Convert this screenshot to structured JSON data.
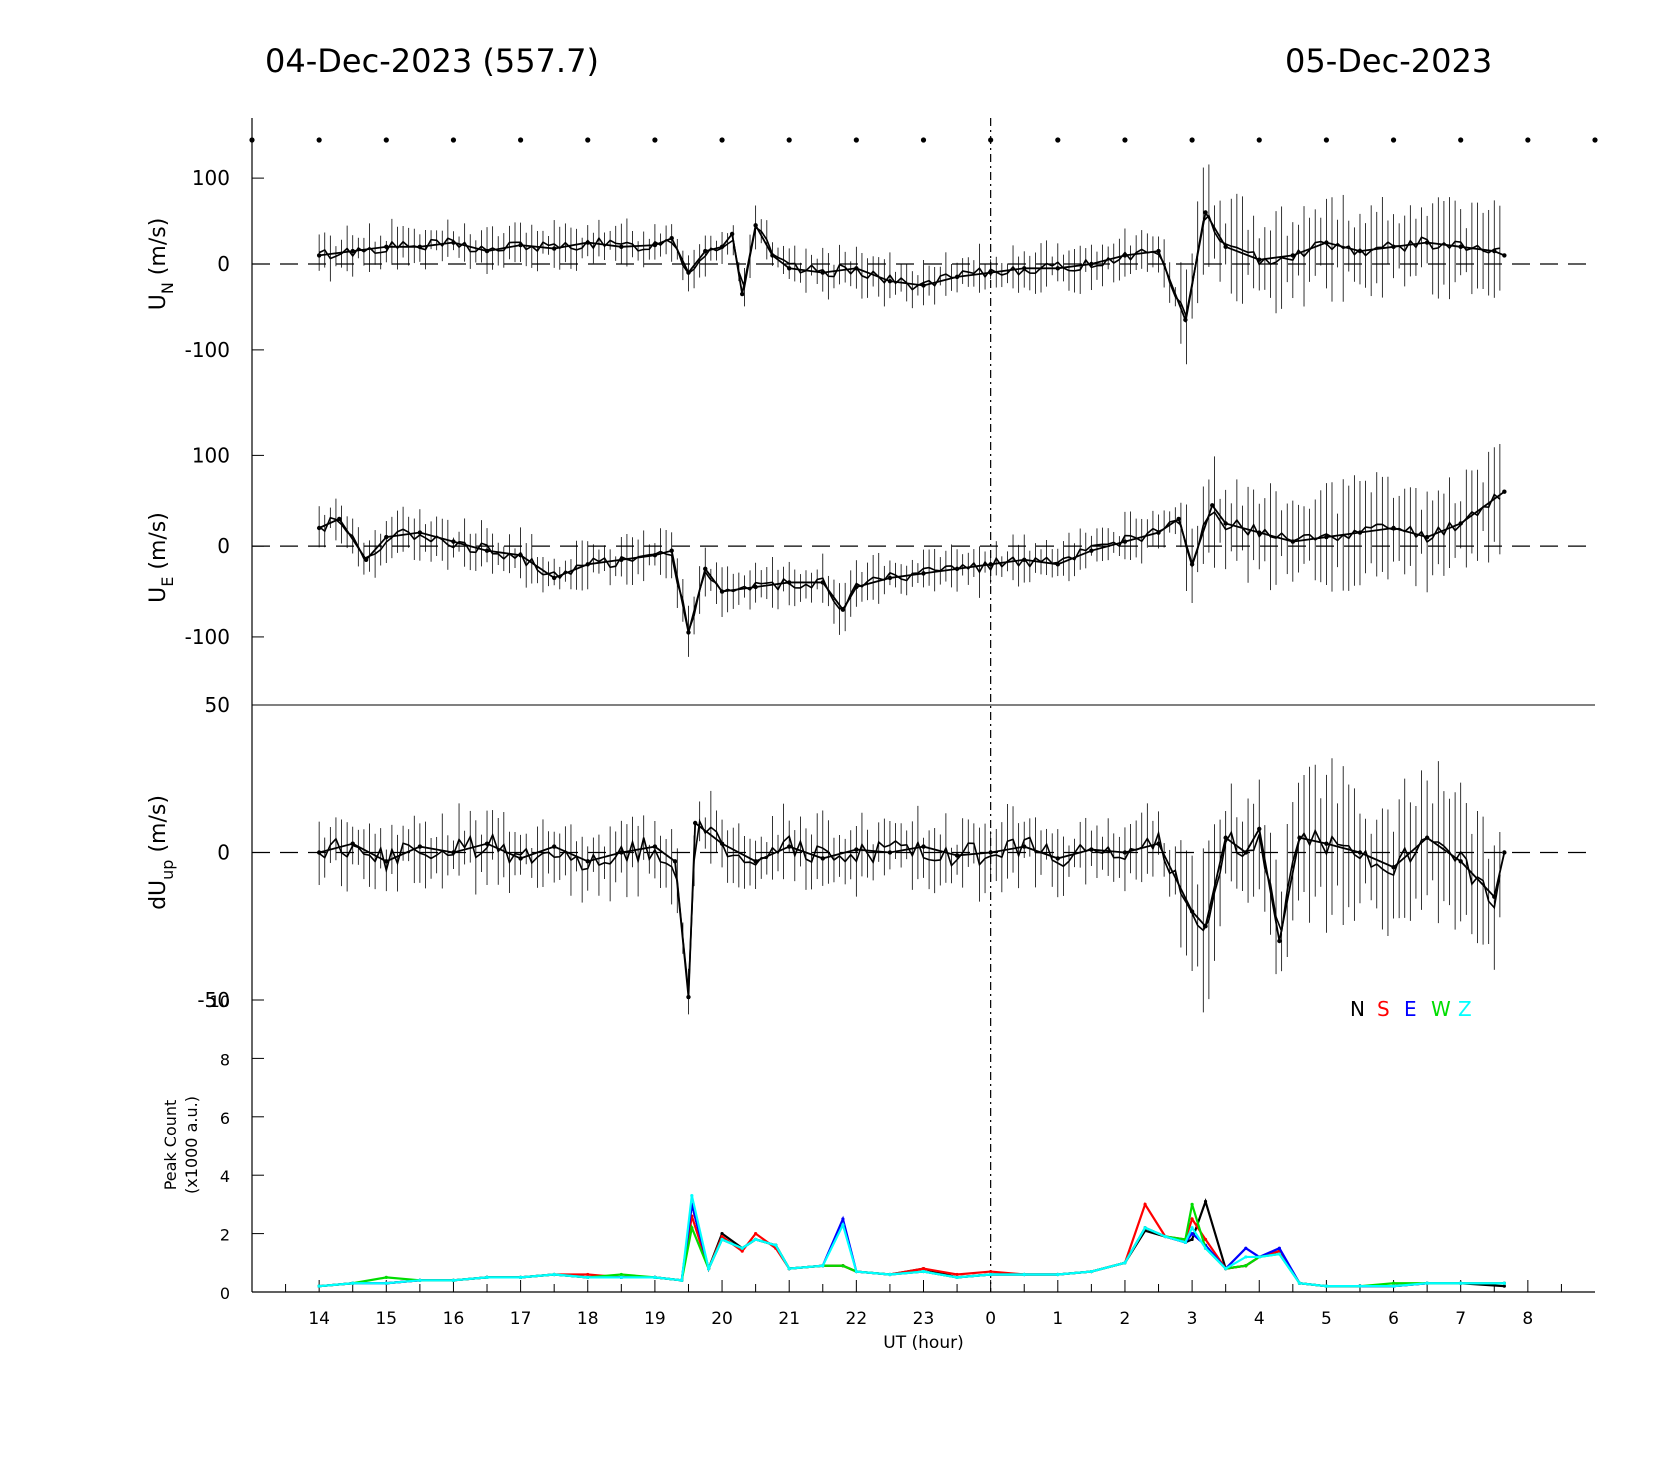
{
  "header": {
    "left_date": "04-Dec-2023 (557.7)",
    "right_date": "05-Dec-2023"
  },
  "chart_data": [
    {
      "type": "line",
      "ylabel_main": "U",
      "ylabel_sub": "N",
      "ylabel_unit": " (m/s)",
      "ylim": [
        -170,
        170
      ],
      "yticks": [
        100,
        0,
        -100
      ],
      "ytick_labels": [
        "100",
        "0",
        "-100"
      ],
      "series": [
        {
          "color": "#000000",
          "error_bars": true,
          "x_hours": [
            14,
            14.5,
            15,
            15.5,
            16,
            16.5,
            17,
            17.5,
            18,
            18.5,
            19,
            19.25,
            19.5,
            19.75,
            20,
            20.15,
            20.3,
            20.5,
            20.75,
            21,
            21.5,
            22,
            22.5,
            23,
            23.5,
            24,
            24.5,
            25,
            25.5,
            26,
            26.5,
            26.9,
            27.2,
            27.5,
            28,
            28.5,
            29,
            29.5,
            30,
            30.5,
            31,
            31.5,
            31.65
          ],
          "values": [
            10,
            15,
            20,
            20,
            25,
            15,
            22,
            18,
            25,
            20,
            22,
            30,
            -10,
            15,
            20,
            35,
            -35,
            45,
            10,
            -5,
            -10,
            -5,
            -20,
            -25,
            -15,
            -10,
            -5,
            -5,
            0,
            10,
            15,
            -65,
            60,
            20,
            5,
            10,
            25,
            15,
            20,
            25,
            20,
            15,
            10
          ]
        }
      ]
    },
    {
      "type": "line",
      "ylabel_main": "U",
      "ylabel_sub": "E",
      "ylabel_unit": " (m/s)",
      "ylim": [
        -175,
        150
      ],
      "yticks": [
        100,
        0,
        -100
      ],
      "ytick_labels": [
        "100",
        "0",
        "-100"
      ],
      "series": [
        {
          "color": "#000000",
          "error_bars": true,
          "x_hours": [
            14,
            14.3,
            14.7,
            15,
            15.5,
            16,
            16.5,
            17,
            17.5,
            18,
            18.5,
            19,
            19.25,
            19.5,
            19.75,
            20,
            20.5,
            21,
            21.5,
            21.8,
            22,
            22.5,
            23,
            23.5,
            24,
            24.5,
            25,
            25.5,
            26,
            26.5,
            26.8,
            27,
            27.3,
            27.5,
            28,
            28.5,
            29,
            29.5,
            30,
            30.5,
            31,
            31.65
          ],
          "values": [
            20,
            30,
            -15,
            10,
            15,
            5,
            -5,
            -10,
            -35,
            -20,
            -15,
            -10,
            -5,
            -95,
            -25,
            -50,
            -45,
            -40,
            -40,
            -70,
            -45,
            -35,
            -30,
            -25,
            -20,
            -15,
            -20,
            -5,
            5,
            15,
            30,
            -20,
            45,
            25,
            15,
            5,
            10,
            15,
            20,
            10,
            25,
            60
          ]
        }
      ]
    },
    {
      "type": "line",
      "ylabel_main": "dU",
      "ylabel_sub": "up",
      "ylabel_unit": " (m/s)",
      "ylim": [
        -50,
        50
      ],
      "yticks": [
        50,
        0,
        -50
      ],
      "ytick_labels": [
        "50",
        "0",
        "-50"
      ],
      "series": [
        {
          "color": "#000000",
          "error_bars": true,
          "x_hours": [
            14,
            14.5,
            15,
            15.5,
            16,
            16.5,
            17,
            17.5,
            18,
            18.5,
            19,
            19.3,
            19.5,
            19.6,
            20,
            20.5,
            21,
            21.5,
            22,
            22.5,
            23,
            23.5,
            24,
            24.5,
            25,
            25.5,
            26,
            26.5,
            27,
            27.2,
            27.5,
            27.8,
            28,
            28.3,
            28.6,
            29,
            29.5,
            30,
            30.5,
            31,
            31.5,
            31.65
          ],
          "values": [
            0,
            3,
            -3,
            2,
            0,
            3,
            -2,
            2,
            -3,
            0,
            2,
            -3,
            -49,
            10,
            3,
            -3,
            2,
            -2,
            1,
            0,
            2,
            -1,
            0,
            2,
            -2,
            1,
            0,
            3,
            -20,
            -25,
            5,
            0,
            8,
            -30,
            5,
            3,
            0,
            -5,
            5,
            -3,
            -15,
            0
          ]
        }
      ]
    },
    {
      "type": "line",
      "ylabel_line1": "Peak Count",
      "ylabel_line2": "(x1000 a.u.)",
      "ylim": [
        0,
        10
      ],
      "yticks": [
        10,
        8,
        6,
        4,
        2,
        0
      ],
      "ytick_labels": [
        "10",
        "8",
        "6",
        "4",
        "2",
        "0"
      ],
      "legend_position": "top-right",
      "legend": [
        {
          "label": "N",
          "color": "#000000"
        },
        {
          "label": "S",
          "color": "#ff0000"
        },
        {
          "label": "E",
          "color": "#0000ff"
        },
        {
          "label": "W",
          "color": "#00dd00"
        },
        {
          "label": "Z",
          "color": "#00ffff"
        }
      ],
      "x_hours": [
        14,
        14.5,
        15,
        15.5,
        16,
        16.5,
        17,
        17.5,
        18,
        18.5,
        19,
        19.4,
        19.55,
        19.8,
        20,
        20.3,
        20.5,
        20.8,
        21,
        21.5,
        21.8,
        22,
        22.5,
        23,
        23.5,
        24,
        24.5,
        25,
        25.5,
        26,
        26.3,
        26.6,
        26.9,
        27,
        27.2,
        27.5,
        27.8,
        28,
        28.3,
        28.6,
        29,
        29.5,
        30,
        30.5,
        31,
        31.65
      ],
      "series": [
        {
          "name": "N",
          "color": "#000000",
          "values": [
            0.2,
            0.3,
            0.3,
            0.4,
            0.4,
            0.5,
            0.5,
            0.6,
            0.5,
            0.5,
            0.5,
            0.4,
            3.0,
            0.8,
            2.0,
            1.5,
            1.8,
            1.6,
            0.8,
            0.9,
            0.9,
            0.7,
            0.6,
            0.8,
            0.5,
            0.6,
            0.6,
            0.6,
            0.7,
            1.0,
            2.1,
            1.9,
            1.7,
            1.8,
            3.1,
            0.8,
            0.9,
            1.2,
            1.4,
            0.3,
            0.2,
            0.2,
            0.2,
            0.3,
            0.3,
            0.2
          ]
        },
        {
          "name": "S",
          "color": "#ff0000",
          "values": [
            0.2,
            0.3,
            0.3,
            0.4,
            0.4,
            0.5,
            0.5,
            0.6,
            0.6,
            0.5,
            0.5,
            0.4,
            2.6,
            0.8,
            1.9,
            1.4,
            2.0,
            1.5,
            0.8,
            0.9,
            0.9,
            0.7,
            0.6,
            0.8,
            0.6,
            0.7,
            0.6,
            0.6,
            0.7,
            1.0,
            3.0,
            1.9,
            1.8,
            2.5,
            1.8,
            0.8,
            0.9,
            1.2,
            1.4,
            0.3,
            0.2,
            0.2,
            0.2,
            0.3,
            0.3,
            0.3
          ]
        },
        {
          "name": "E",
          "color": "#0000ff",
          "values": [
            0.2,
            0.3,
            0.3,
            0.4,
            0.4,
            0.5,
            0.5,
            0.6,
            0.5,
            0.5,
            0.5,
            0.4,
            3.0,
            0.8,
            1.8,
            1.5,
            1.8,
            1.6,
            0.8,
            0.9,
            2.5,
            0.7,
            0.6,
            0.7,
            0.5,
            0.6,
            0.6,
            0.6,
            0.7,
            1.0,
            2.2,
            1.9,
            1.7,
            2.0,
            1.6,
            0.8,
            1.5,
            1.2,
            1.5,
            0.3,
            0.2,
            0.2,
            0.2,
            0.3,
            0.3,
            0.3
          ]
        },
        {
          "name": "W",
          "color": "#00dd00",
          "values": [
            0.2,
            0.3,
            0.5,
            0.4,
            0.4,
            0.5,
            0.5,
            0.6,
            0.5,
            0.6,
            0.5,
            0.4,
            2.2,
            0.8,
            1.8,
            1.5,
            1.8,
            1.6,
            0.8,
            0.9,
            0.9,
            0.7,
            0.6,
            0.7,
            0.5,
            0.6,
            0.6,
            0.6,
            0.7,
            1.0,
            2.2,
            1.9,
            1.8,
            3.0,
            1.5,
            0.8,
            0.9,
            1.2,
            1.3,
            0.3,
            0.2,
            0.2,
            0.3,
            0.3,
            0.3,
            0.3
          ]
        },
        {
          "name": "Z",
          "color": "#00ffff",
          "values": [
            0.2,
            0.3,
            0.3,
            0.4,
            0.4,
            0.5,
            0.5,
            0.6,
            0.5,
            0.5,
            0.5,
            0.4,
            3.3,
            0.8,
            1.8,
            1.5,
            1.8,
            1.6,
            0.8,
            0.9,
            2.3,
            0.7,
            0.6,
            0.7,
            0.5,
            0.6,
            0.6,
            0.6,
            0.7,
            1.0,
            2.2,
            1.9,
            1.7,
            2.2,
            1.5,
            0.8,
            1.2,
            1.2,
            1.3,
            0.3,
            0.2,
            0.2,
            0.2,
            0.3,
            0.3,
            0.3
          ]
        }
      ]
    }
  ],
  "x_axis": {
    "xlabel": "UT (hour)",
    "range_hours": [
      13,
      33
    ],
    "midnight_hours": 24,
    "tick_hours": [
      14,
      15,
      16,
      17,
      18,
      19,
      20,
      21,
      22,
      23,
      24,
      25,
      26,
      27,
      28,
      29,
      30,
      31,
      32
    ],
    "tick_labels": [
      "14",
      "15",
      "16",
      "17",
      "18",
      "19",
      "20",
      "21",
      "22",
      "23",
      "0",
      "1",
      "2",
      "3",
      "4",
      "5",
      "6",
      "7",
      "8"
    ],
    "dot_hours": [
      13,
      14,
      15,
      16,
      17,
      18,
      19,
      20,
      21,
      22,
      23,
      24,
      25,
      26,
      27,
      28,
      29,
      30,
      31,
      32,
      33
    ]
  }
}
